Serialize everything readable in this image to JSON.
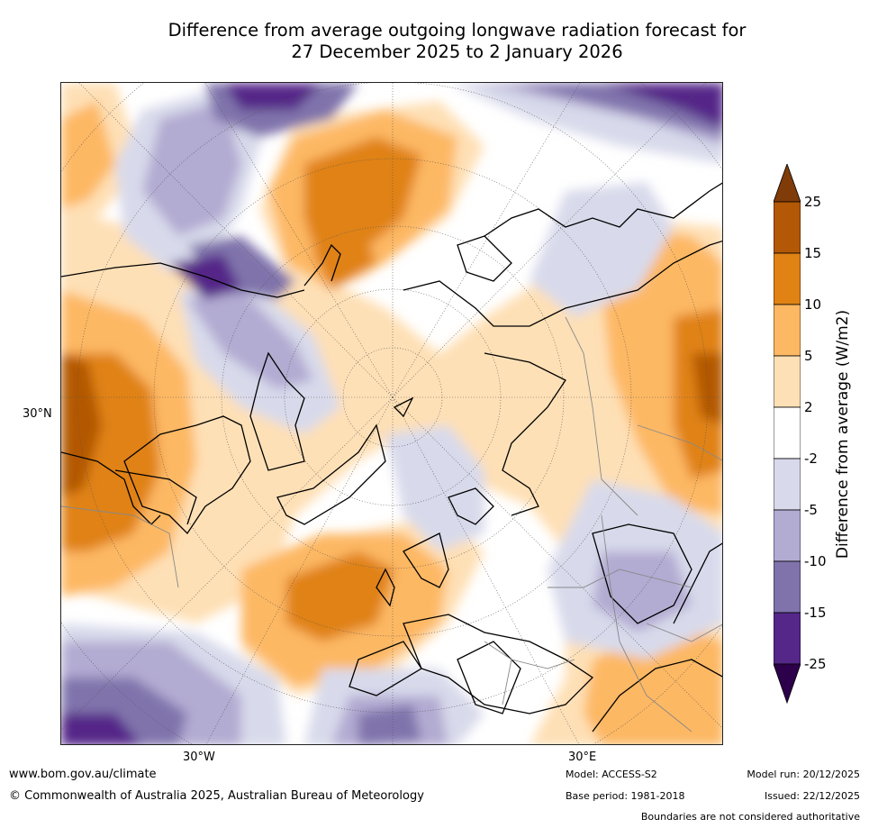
{
  "title_line1": "Difference from average outgoing longwave radiation forecast for",
  "title_line2": "27 December 2025 to 2 January 2026",
  "map": {
    "projection": "north-polar-stereographic",
    "lat_label": "30°N",
    "lon_labels": [
      "30°W",
      "30°E"
    ]
  },
  "colorbar": {
    "label": "Difference from average (W/m2)",
    "ticks": [
      "25",
      "15",
      "10",
      "5",
      "2",
      "-2",
      "-5",
      "-10",
      "-15",
      "-25"
    ],
    "colors": [
      "#7f3b08",
      "#b35806",
      "#e08214",
      "#fdb863",
      "#fee0b6",
      "#ffffff",
      "#d8daeb",
      "#b2abd2",
      "#8073ac",
      "#542788",
      "#2d004b"
    ]
  },
  "footer": {
    "website": "www.bom.gov.au/climate",
    "copyright": "© Commonwealth of Australia 2025, Australian Bureau of Meteorology",
    "model": "Model: ACCESS-S2",
    "base_period": "Base period: 1981-2018",
    "model_run": "Model run: 20/12/2025",
    "issued": "Issued: 22/12/2025",
    "disclaimer": "Boundaries are not considered authoritative"
  }
}
